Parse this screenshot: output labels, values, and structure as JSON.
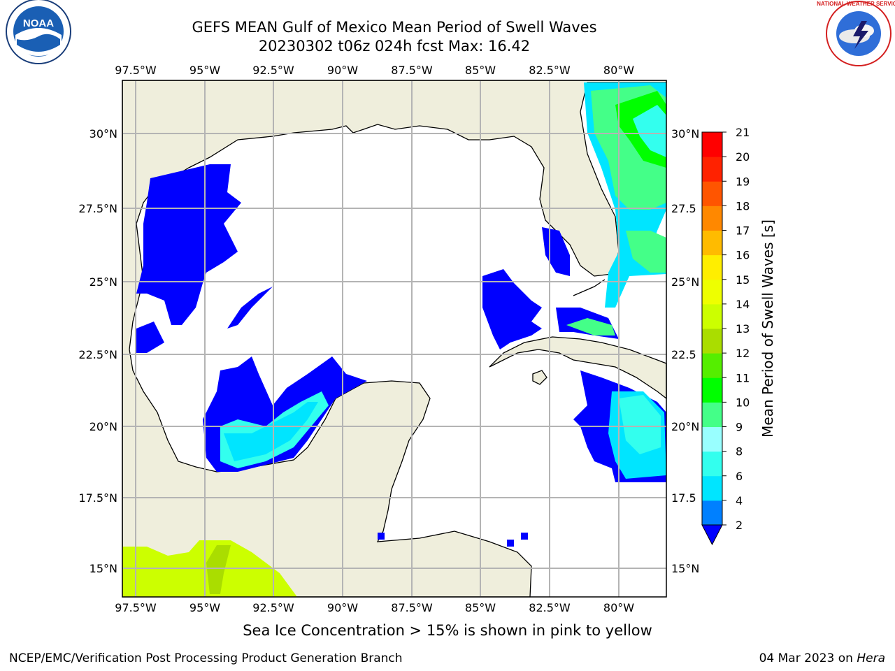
{
  "header": {
    "title_line1": "GEFS MEAN Gulf of Mexico Mean Period of Swell Waves",
    "title_line2": "20230302 t06z 024h fcst   Max: 16.42"
  },
  "logos": {
    "left": "noaa-logo",
    "right": "national-weather-service-logo"
  },
  "map": {
    "lon_ticks_top": [
      "97.5°W",
      "95°W",
      "92.5°W",
      "90°W",
      "87.5°W",
      "85°W",
      "82.5°W",
      "80°W"
    ],
    "lon_ticks_bottom": [
      "97.5°W",
      "95°W",
      "92.5°W",
      "90°W",
      "87.5°W",
      "85°W",
      "82.5°W",
      "80°W"
    ],
    "lat_ticks_left": [
      "30°N",
      "27.5°N",
      "25°N",
      "22.5°N",
      "20°N",
      "17.5°N",
      "15°N"
    ],
    "lat_ticks_right": [
      "30°N",
      "27.5",
      "25°N",
      "22.5",
      "20°N",
      "17.5",
      "15°N"
    ],
    "land_color": "#efeedc",
    "ocean_color": "#ffffff",
    "grid_color": "#b4b4b4"
  },
  "colorbar": {
    "label": "Mean Period of Swell Waves [s]",
    "levels": [
      "2",
      "4",
      "6",
      "8",
      "9",
      "10",
      "11",
      "12",
      "13",
      "14",
      "15",
      "16",
      "17",
      "18",
      "19",
      "20",
      "21"
    ],
    "colors": [
      "#0000ff",
      "#0080ff",
      "#00e5ff",
      "#33ffee",
      "#99ffff",
      "#44ff88",
      "#00ff00",
      "#55ee00",
      "#aadd00",
      "#ccff00",
      "#eeff00",
      "#ffee00",
      "#ffbb00",
      "#ff8800",
      "#ff5500",
      "#ff2200",
      "#ff0000"
    ]
  },
  "note": "Sea Ice Concentration > 15% is shown in pink to yellow",
  "footer": {
    "left": "NCEP/EMC/Verification Post Processing Product Generation Branch",
    "right_date": "04 Mar 2023 on ",
    "right_host": "Hera"
  }
}
